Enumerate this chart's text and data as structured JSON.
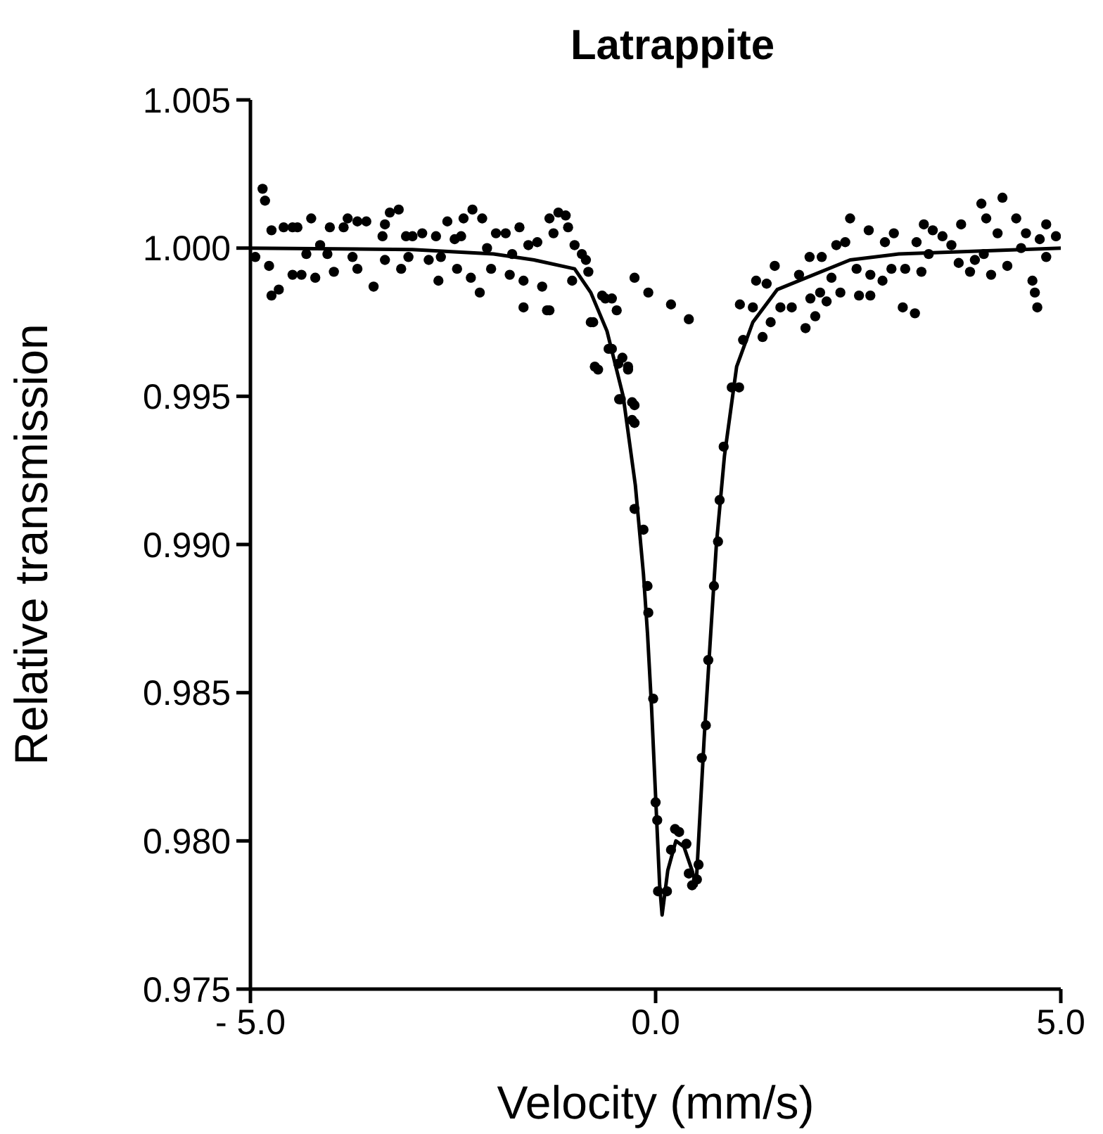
{
  "chart_data": {
    "type": "scatter",
    "title": "Latrappite",
    "xlabel": "Velocity (mm/s)",
    "ylabel": "Relative transmission",
    "xlim": [
      -5,
      5
    ],
    "xticks": [
      {
        "value": -5,
        "label": "- 5.0"
      },
      {
        "value": 0,
        "label": "0.0"
      },
      {
        "value": 5,
        "label": "5.0"
      }
    ],
    "ylim": [
      0.975,
      1.005
    ],
    "yticks": [
      {
        "value": 0.975,
        "label": "0.975"
      },
      {
        "value": 0.98,
        "label": "0.980"
      },
      {
        "value": 0.985,
        "label": "0.985"
      },
      {
        "value": 0.99,
        "label": "0.990"
      },
      {
        "value": 0.995,
        "label": "0.995"
      },
      {
        "value": 1,
        "label": "1.000"
      },
      {
        "value": 1.005,
        "label": "1.005"
      }
    ],
    "grid": false,
    "legend": false,
    "series": [
      {
        "marker": "circle",
        "color": "#000000",
        "x": [
          -4.85,
          -4.82,
          -4.94,
          -4.77,
          -4.74,
          -4.65,
          -4.74,
          -4.59,
          -4.48,
          -4.42,
          -4.25,
          -4.31,
          -4.14,
          -4.2,
          -4.48,
          -4.37,
          -4.02,
          -4.05,
          -3.97,
          -3.85,
          -3.8,
          -3.68,
          -3.57,
          -3.74,
          -3.68,
          -3.48,
          -3.37,
          -3.34,
          -3.28,
          -3.17,
          -3.08,
          -3.0,
          -2.88,
          -2.71,
          -3.34,
          -3.14,
          -3.05,
          -2.8,
          -2.65,
          -2.68,
          -2.57,
          -2.48,
          -2.4,
          -2.37,
          -2.26,
          -2.14,
          -2.45,
          -2.28,
          -2.17,
          -2.08,
          -1.97,
          -1.85,
          -1.68,
          -2.03,
          -1.77,
          -1.8,
          -1.63,
          -1.57,
          -1.46,
          -1.63,
          -1.4,
          -1.31,
          -1.31,
          -1.2,
          -1.11,
          -1.26,
          -1.08,
          -1.0,
          -0.91,
          -0.86,
          -0.83,
          -1.03,
          -0.66,
          -0.54,
          -0.48,
          -0.8,
          -0.71,
          -0.54,
          -0.46,
          -0.34,
          -0.43,
          -0.26,
          -0.26,
          -0.26,
          -0.09,
          -0.29,
          -0.29,
          -0.45,
          -0.34,
          -0.41,
          -0.58,
          -0.75,
          -0.77,
          -0.62,
          -1.34,
          0.19,
          0.41,
          -0.26,
          -0.15,
          -0.1,
          -0.09,
          -0.03,
          0.0,
          0.02,
          0.03,
          0.14,
          0.19,
          0.24,
          0.29,
          0.38,
          0.41,
          0.45,
          0.51,
          0.53,
          0.57,
          0.62,
          0.65,
          0.72,
          0.77,
          0.79,
          0.84,
          0.94,
          1.03,
          1.08,
          1.04,
          1.2,
          1.24,
          1.37,
          1.47,
          1.42,
          1.32,
          1.54,
          1.68,
          1.85,
          1.97,
          1.91,
          2.03,
          2.11,
          1.77,
          1.9,
          2.05,
          2.17,
          2.23,
          2.34,
          2.4,
          2.28,
          2.51,
          2.65,
          2.48,
          2.65,
          2.8,
          2.91,
          2.63,
          2.83,
          2.94,
          3.05,
          3.2,
          3.08,
          3.22,
          3.31,
          3.42,
          3.28,
          3.37,
          3.54,
          3.65,
          3.77,
          3.74,
          3.88,
          3.94,
          4.05,
          4.14,
          4.02,
          4.28,
          4.08,
          4.22,
          4.34,
          4.45,
          4.57,
          4.51,
          4.65,
          4.68,
          4.71,
          4.74,
          4.82,
          4.82,
          4.94
        ],
        "values": [
          1.002,
          1.0016,
          0.9997,
          0.9994,
          0.9984,
          0.9986,
          1.0006,
          1.0007,
          1.0007,
          1.0007,
          1.001,
          0.9998,
          1.0001,
          0.999,
          0.9991,
          0.9991,
          1.0007,
          0.9998,
          0.9992,
          1.0007,
          1.001,
          1.0009,
          1.0009,
          0.9997,
          0.9993,
          0.9987,
          1.0004,
          1.0008,
          1.0012,
          1.0013,
          1.0004,
          1.0004,
          1.0005,
          1.0004,
          0.9996,
          0.9993,
          0.9997,
          0.9996,
          0.9997,
          0.9989,
          1.0009,
          1.0003,
          1.0004,
          1.001,
          1.0013,
          1.001,
          0.9993,
          0.999,
          0.9985,
          1.0,
          1.0005,
          1.0005,
          1.0007,
          0.9993,
          0.9998,
          0.9991,
          0.9989,
          1.0001,
          1.0002,
          0.998,
          0.9987,
          0.9979,
          1.001,
          1.0012,
          1.0011,
          1.0005,
          1.0007,
          1.0001,
          0.9998,
          0.9996,
          0.9992,
          0.9989,
          0.9984,
          0.9983,
          0.9979,
          0.9975,
          0.9959,
          0.9966,
          0.9961,
          0.9959,
          0.9949,
          0.9947,
          0.9941,
          0.999,
          0.9985,
          0.9942,
          0.9948,
          0.9949,
          0.996,
          0.9963,
          0.9966,
          0.996,
          0.9975,
          0.9983,
          0.9979,
          0.9981,
          0.9976,
          0.9912,
          0.9905,
          0.9886,
          0.9877,
          0.9848,
          0.9813,
          0.9807,
          0.9783,
          0.9783,
          0.9797,
          0.9804,
          0.9803,
          0.9799,
          0.9789,
          0.9785,
          0.9787,
          0.9792,
          0.9828,
          0.9839,
          0.9861,
          0.9886,
          0.9901,
          0.9915,
          0.9933,
          0.9953,
          0.9953,
          0.9969,
          0.9981,
          0.998,
          0.9989,
          0.9988,
          0.9994,
          0.9975,
          0.997,
          0.998,
          0.998,
          0.9973,
          0.9977,
          0.9983,
          0.9985,
          0.9982,
          0.9991,
          0.9997,
          0.9997,
          0.999,
          1.0001,
          1.0002,
          1.001,
          0.9985,
          0.9984,
          0.9984,
          0.9993,
          0.9991,
          0.9989,
          0.9993,
          1.0006,
          1.0002,
          1.0005,
          0.998,
          0.9978,
          0.9993,
          1.0002,
          1.0008,
          1.0006,
          0.9992,
          0.9998,
          1.0004,
          1.0001,
          1.0008,
          0.9995,
          0.9992,
          0.9996,
          0.9998,
          0.9991,
          1.0015,
          1.0017,
          1.001,
          1.0005,
          0.9994,
          1.001,
          1.0005,
          1.0,
          0.9989,
          0.9985,
          0.998,
          1.0003,
          1.0008,
          0.9997,
          1.0004
        ]
      },
      {
        "type": "line",
        "color": "#000000",
        "x": [
          -5,
          -3,
          -2,
          -1.5,
          -1,
          -0.8,
          -0.6,
          -0.4,
          -0.25,
          -0.15,
          -0.1,
          -0.05,
          0,
          0.05,
          0.08,
          0.15,
          0.25,
          0.35,
          0.45,
          0.5,
          0.55,
          0.6,
          0.68,
          0.75,
          0.85,
          1.0,
          1.2,
          1.5,
          2.4,
          3,
          5
        ],
        "values": [
          1.0,
          0.99995,
          0.9998,
          0.9996,
          0.9993,
          0.9985,
          0.9972,
          0.995,
          0.992,
          0.989,
          0.987,
          0.9845,
          0.9815,
          0.9785,
          0.9775,
          0.979,
          0.98,
          0.9798,
          0.979,
          0.9785,
          0.981,
          0.9835,
          0.987,
          0.99,
          0.993,
          0.996,
          0.9975,
          0.9986,
          0.9996,
          0.9998,
          1.0
        ]
      }
    ]
  }
}
